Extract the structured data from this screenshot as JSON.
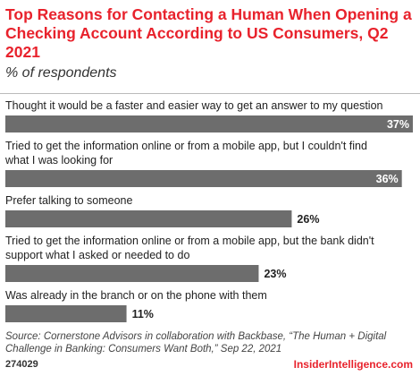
{
  "title": "Top Reasons for Contacting a Human When Opening a Checking Account According to US Consumers, Q2 2021",
  "subtitle": "% of respondents",
  "chart_data": {
    "type": "bar",
    "orientation": "horizontal",
    "categories": [
      "Thought it would be a faster and easier way to get an answer to my question",
      "Tried to get the information online or from a mobile app, but I couldn't find what I was looking for",
      "Prefer talking to someone",
      "Tried to get the information online or from a mobile app, but the bank didn't support what I asked or needed to do",
      "Was already in the branch or on the phone with them"
    ],
    "category_lines": [
      [
        "Thought it would be a faster and easier way to get an answer to my question"
      ],
      [
        "Tried to get the information online or from a mobile app, but I couldn't find",
        "what I was looking for"
      ],
      [
        "Prefer talking to someone"
      ],
      [
        "Tried to get the information online or from a mobile app, but the bank didn't",
        "support what I asked or needed to do"
      ],
      [
        "Was already in the branch or on the phone with them"
      ]
    ],
    "values": [
      37,
      36,
      26,
      23,
      11
    ],
    "value_labels": [
      "37%",
      "36%",
      "26%",
      "23%",
      "11%"
    ],
    "xlim": [
      0,
      37
    ],
    "bar_color": "#6d6d6d",
    "inside_label_color": "#ffffff",
    "outside_label_color": "#222222",
    "grid": false
  },
  "source": "Source: Cornerstone Advisors in collaboration with Backbase, “The Human + Digital Challenge in Banking: Consumers Want Both,” Sep 22, 2021",
  "footer_id": "274029",
  "brand": "InsiderIntelligence.com",
  "colors": {
    "title": "#e8222c",
    "brand": "#e8222c",
    "bar": "#6d6d6d"
  }
}
